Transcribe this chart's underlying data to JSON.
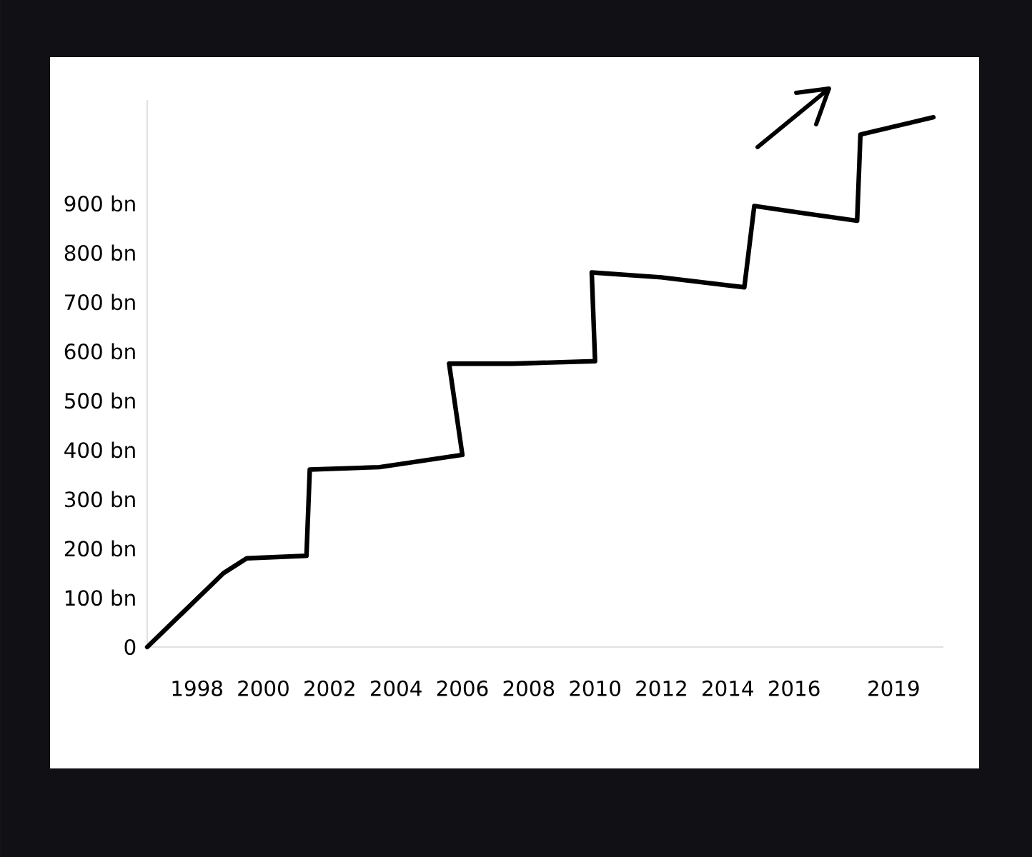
{
  "chart_data": {
    "type": "line",
    "x": [
      1996.5,
      1998.8,
      1999.5,
      2001.3,
      2001.4,
      2003.5,
      2006.0,
      2005.6,
      2007.5,
      2010.0,
      2009.9,
      2012.0,
      2014.5,
      2014.8,
      2016.3,
      2017.9,
      2018.0,
      2020.2
    ],
    "values": [
      0,
      150,
      180,
      185,
      360,
      365,
      390,
      575,
      575,
      580,
      760,
      750,
      730,
      895,
      880,
      865,
      1040,
      1075
    ],
    "color": "#000000",
    "xlim": [
      1996.5,
      2020.5
    ],
    "ylim": [
      0,
      1110
    ],
    "xticks": [
      1998,
      2000,
      2002,
      2004,
      2006,
      2008,
      2010,
      2012,
      2014,
      2016,
      2019
    ],
    "yticks": [
      0,
      {
        "value": 100,
        "label": "100 bn"
      },
      {
        "value": 200,
        "label": "200 bn"
      },
      {
        "value": 300,
        "label": "300 bn"
      },
      {
        "value": 400,
        "label": "400 bn"
      },
      {
        "value": 500,
        "label": "500 bn"
      },
      {
        "value": 600,
        "label": "600 bn"
      },
      {
        "value": 700,
        "label": "700 bn"
      },
      {
        "value": 800,
        "label": "800 bn"
      },
      {
        "value": 900,
        "label": "900 bn"
      }
    ]
  }
}
